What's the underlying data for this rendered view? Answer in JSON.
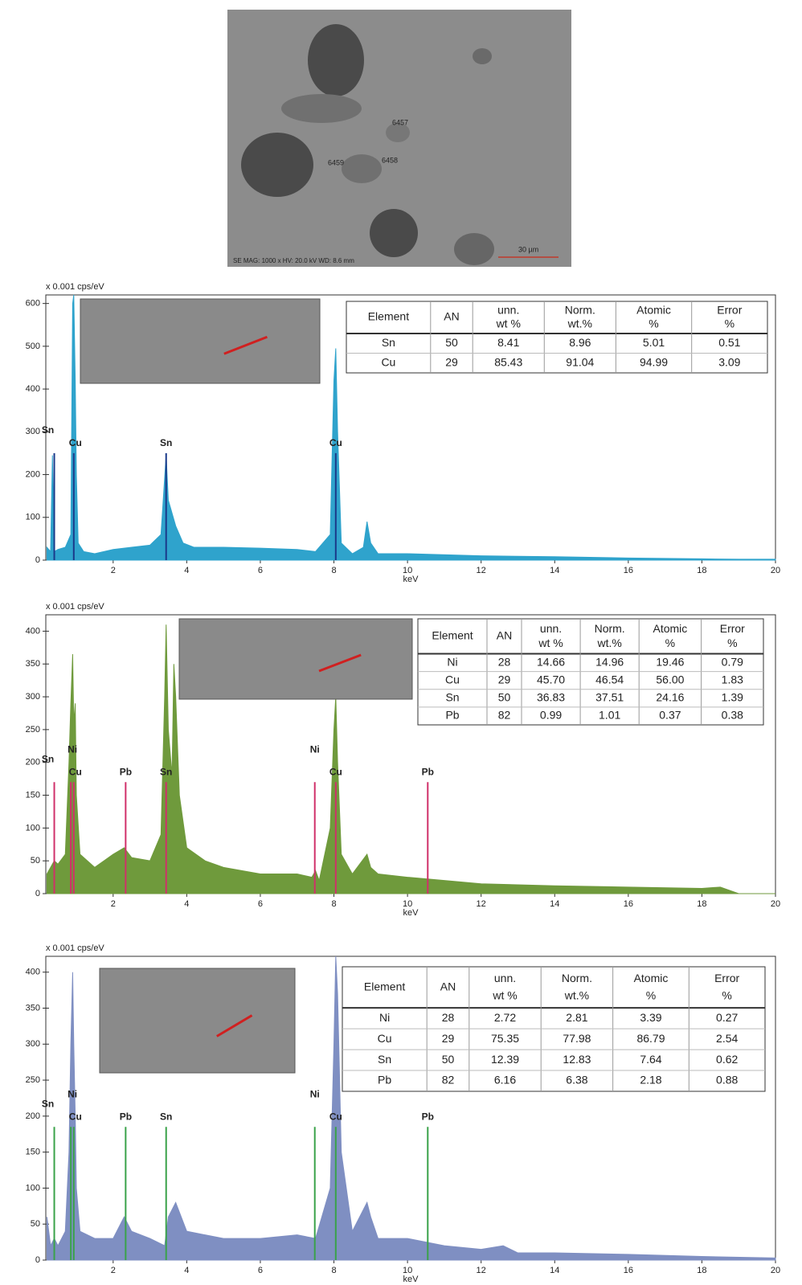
{
  "sem_image": {
    "labels": [
      "6457",
      "6458",
      "6459"
    ],
    "footer": "SE  MAG: 1000 x   HV: 20.0 kV   WD: 8.6 mm",
    "scale": "30 µm"
  },
  "chart_data": [
    {
      "type": "area",
      "y_label": "x 0.001 cps/eV",
      "x_label": "keV",
      "color": "#2fa3cc",
      "marker_color": "#1a3a8a",
      "x": [
        0.2,
        0.3,
        0.35,
        0.4,
        0.5,
        0.7,
        0.85,
        0.9,
        0.93,
        0.97,
        1.0,
        1.05,
        1.2,
        1.5,
        2,
        2.5,
        3,
        3.3,
        3.44,
        3.5,
        3.6,
        3.7,
        3.9,
        4.2,
        5,
        6,
        7,
        7.5,
        7.9,
        8.0,
        8.05,
        8.1,
        8.2,
        8.5,
        8.8,
        8.9,
        9.0,
        9.2,
        10,
        12,
        14,
        16,
        18,
        19,
        20
      ],
      "values": [
        30,
        20,
        245,
        20,
        25,
        30,
        60,
        600,
        620,
        420,
        200,
        40,
        20,
        15,
        25,
        30,
        35,
        60,
        245,
        140,
        110,
        80,
        40,
        30,
        30,
        28,
        25,
        20,
        60,
        420,
        495,
        300,
        40,
        15,
        30,
        90,
        40,
        15,
        15,
        10,
        8,
        5,
        3,
        2,
        2
      ],
      "xlim": [
        0.17,
        20
      ],
      "ylim": [
        0,
        620
      ],
      "xticks": [
        2,
        4,
        6,
        8,
        10,
        12,
        14,
        16,
        18,
        20
      ],
      "yticks": [
        0,
        100,
        200,
        300,
        400,
        500,
        600
      ],
      "markers": [
        {
          "label": "Sn",
          "x": 0.4,
          "y": 250
        },
        {
          "label": "Cu",
          "x": 0.93,
          "y": 250
        },
        {
          "label": "Sn",
          "x": 3.44,
          "y": 250
        },
        {
          "label": "Cu",
          "x": 8.05,
          "y": 250
        }
      ],
      "table": {
        "header": [
          [
            "Element"
          ],
          [
            "AN"
          ],
          [
            "unn.",
            "wt %"
          ],
          [
            "Norm.",
            "wt.%"
          ],
          [
            "Atomic",
            "%"
          ],
          [
            "Error",
            "%"
          ]
        ],
        "rows": [
          [
            "Sn",
            "50",
            "8.41",
            "8.96",
            "5.01",
            "0.51"
          ],
          [
            "Cu",
            "29",
            "85.43",
            "91.04",
            "94.99",
            "3.09"
          ]
        ]
      }
    },
    {
      "type": "area",
      "y_label": "x 0.001 cps/eV",
      "x_label": "keV",
      "color": "#6f9a3c",
      "marker_color": "#d0306a",
      "x": [
        0.2,
        0.3,
        0.4,
        0.5,
        0.7,
        0.8,
        0.85,
        0.9,
        0.93,
        0.97,
        1.0,
        1.1,
        1.5,
        2,
        2.3,
        2.5,
        3,
        3.3,
        3.4,
        3.44,
        3.5,
        3.6,
        3.65,
        3.7,
        3.8,
        4,
        4.5,
        5,
        6,
        7,
        7.4,
        7.5,
        7.6,
        7.9,
        8.0,
        8.05,
        8.1,
        8.2,
        8.5,
        8.9,
        9.0,
        9.2,
        10,
        11,
        12,
        14,
        16,
        18,
        18.5,
        19,
        20
      ],
      "values": [
        30,
        40,
        50,
        45,
        60,
        200,
        290,
        365,
        260,
        290,
        150,
        60,
        40,
        60,
        70,
        55,
        50,
        90,
        300,
        410,
        250,
        180,
        350,
        300,
        150,
        70,
        50,
        40,
        30,
        30,
        25,
        35,
        20,
        100,
        250,
        300,
        200,
        60,
        30,
        60,
        40,
        30,
        25,
        20,
        15,
        12,
        10,
        8,
        10,
        0,
        0
      ],
      "xlim": [
        0.17,
        20
      ],
      "ylim": [
        0,
        425
      ],
      "xticks": [
        2,
        4,
        6,
        8,
        10,
        12,
        14,
        16,
        18,
        20
      ],
      "yticks": [
        0,
        50,
        100,
        150,
        200,
        250,
        300,
        350,
        400
      ],
      "markers": [
        {
          "label": "Sn",
          "x": 0.4,
          "y": 170
        },
        {
          "label": "Ni",
          "x": 0.85,
          "y": 170
        },
        {
          "label": "Cu",
          "x": 0.93,
          "y": 170
        },
        {
          "label": "Pb",
          "x": 2.34,
          "y": 170
        },
        {
          "label": "Sn",
          "x": 3.44,
          "y": 170
        },
        {
          "label": "Ni",
          "x": 7.48,
          "y": 170
        },
        {
          "label": "Cu",
          "x": 8.05,
          "y": 170
        },
        {
          "label": "Pb",
          "x": 10.55,
          "y": 170
        }
      ],
      "table": {
        "header": [
          [
            "Element"
          ],
          [
            "AN"
          ],
          [
            "unn.",
            "wt %"
          ],
          [
            "Norm.",
            "wt.%"
          ],
          [
            "Atomic",
            "%"
          ],
          [
            "Error",
            "%"
          ]
        ],
        "rows": [
          [
            "Ni",
            "28",
            "14.66",
            "14.96",
            "19.46",
            "0.79"
          ],
          [
            "Cu",
            "29",
            "45.70",
            "46.54",
            "56.00",
            "1.83"
          ],
          [
            "Sn",
            "50",
            "36.83",
            "37.51",
            "24.16",
            "1.39"
          ],
          [
            "Pb",
            "82",
            "0.99",
            "1.01",
            "0.37",
            "0.38"
          ]
        ]
      }
    },
    {
      "type": "area",
      "y_label": "x 0.001 cps/eV",
      "x_label": "keV",
      "color": "#7f8fc2",
      "marker_color": "#3aa24a",
      "x": [
        0.2,
        0.3,
        0.4,
        0.5,
        0.7,
        0.8,
        0.85,
        0.9,
        0.93,
        0.97,
        1.0,
        1.1,
        1.5,
        2,
        2.3,
        2.5,
        3,
        3.4,
        3.5,
        3.7,
        4,
        5,
        6,
        7,
        7.5,
        7.9,
        8.0,
        8.05,
        8.1,
        8.2,
        8.5,
        8.9,
        9.0,
        9.2,
        10,
        11,
        12,
        12.6,
        13,
        14,
        16,
        18,
        20
      ],
      "values": [
        60,
        20,
        30,
        20,
        40,
        150,
        300,
        400,
        300,
        200,
        100,
        40,
        30,
        30,
        60,
        40,
        30,
        20,
        60,
        80,
        40,
        30,
        30,
        35,
        30,
        100,
        300,
        422,
        370,
        150,
        40,
        80,
        60,
        30,
        30,
        20,
        15,
        20,
        10,
        10,
        8,
        5,
        3
      ],
      "xlim": [
        0.17,
        20
      ],
      "ylim": [
        0,
        422
      ],
      "xticks": [
        2,
        4,
        6,
        8,
        10,
        12,
        14,
        16,
        18,
        20
      ],
      "yticks": [
        0,
        50,
        100,
        150,
        200,
        250,
        300,
        350,
        400
      ],
      "markers": [
        {
          "label": "Sn",
          "x": 0.4,
          "y": 185
        },
        {
          "label": "Ni",
          "x": 0.85,
          "y": 185
        },
        {
          "label": "Cu",
          "x": 0.93,
          "y": 185
        },
        {
          "label": "Pb",
          "x": 2.34,
          "y": 185
        },
        {
          "label": "Sn",
          "x": 3.44,
          "y": 185
        },
        {
          "label": "Ni",
          "x": 7.48,
          "y": 185
        },
        {
          "label": "Cu",
          "x": 8.05,
          "y": 185
        },
        {
          "label": "Pb",
          "x": 10.55,
          "y": 185
        }
      ],
      "table": {
        "header": [
          [
            "Element"
          ],
          [
            "AN"
          ],
          [
            "unn.",
            "wt %"
          ],
          [
            "Norm.",
            "wt.%"
          ],
          [
            "Atomic",
            "%"
          ],
          [
            "Error",
            "%"
          ]
        ],
        "rows": [
          [
            "Ni",
            "28",
            "2.72",
            "2.81",
            "3.39",
            "0.27"
          ],
          [
            "Cu",
            "29",
            "75.35",
            "77.98",
            "86.79",
            "2.54"
          ],
          [
            "Sn",
            "50",
            "12.39",
            "12.83",
            "7.64",
            "0.62"
          ],
          [
            "Pb",
            "82",
            "6.16",
            "6.38",
            "2.18",
            "0.88"
          ]
        ]
      }
    }
  ]
}
